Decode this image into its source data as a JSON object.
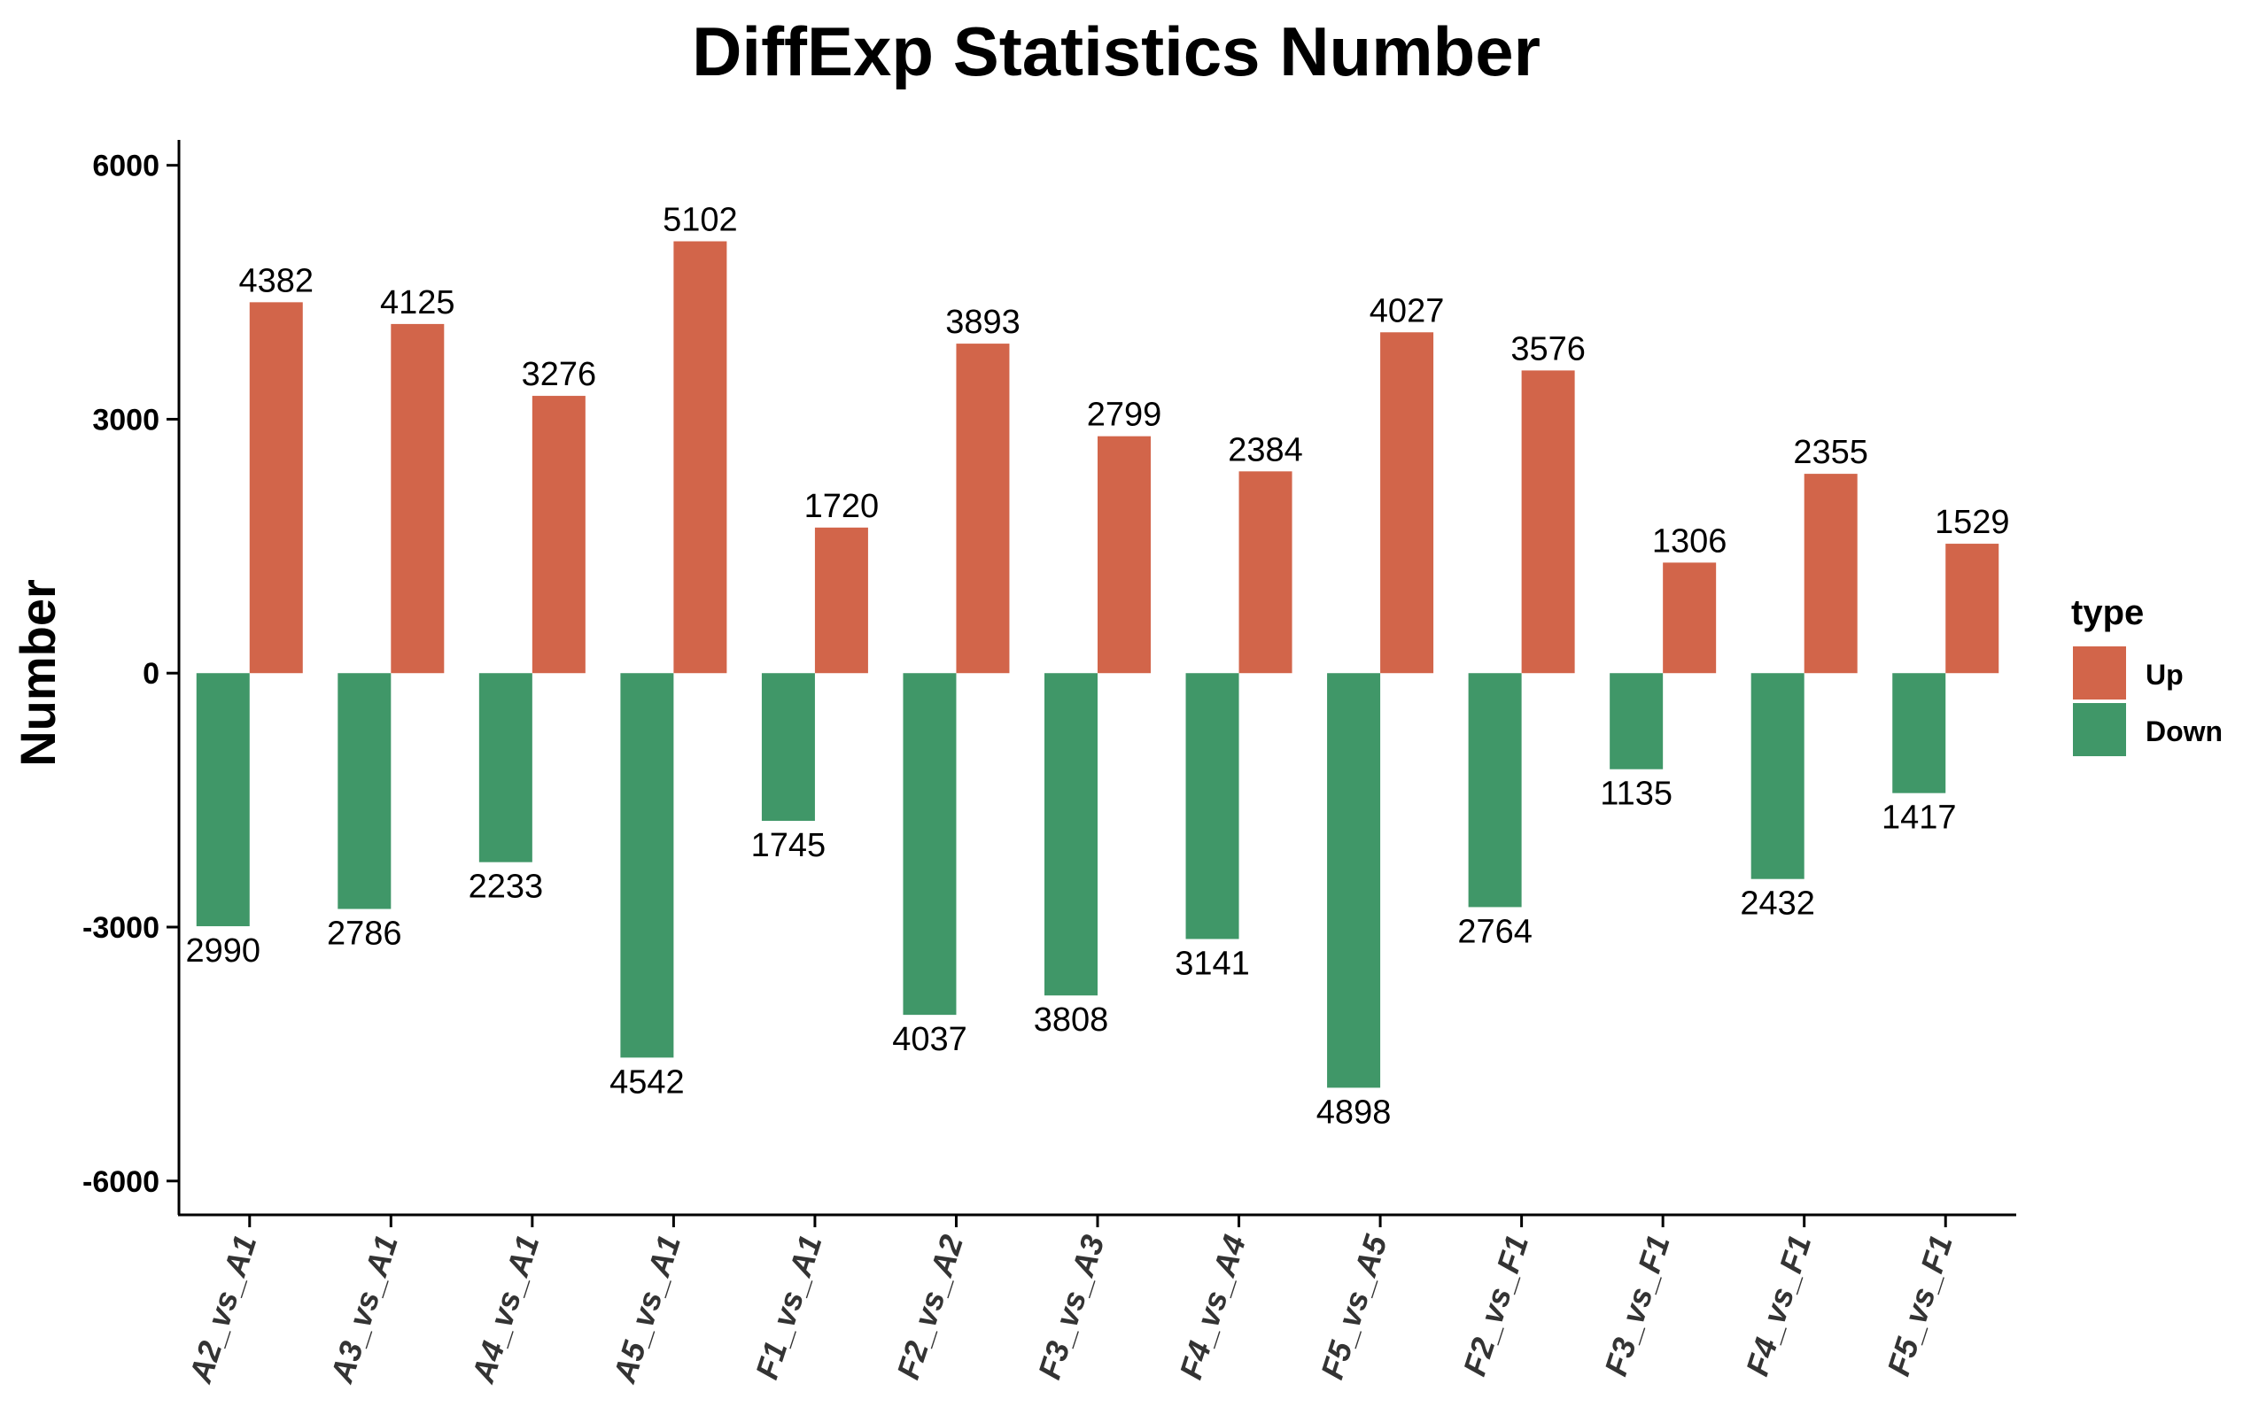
{
  "chart_data": {
    "type": "bar",
    "title": "DiffExp Statistics Number",
    "xlabel": "",
    "ylabel": "Number",
    "ylim": [
      -6400,
      6300
    ],
    "yticks": [
      6000,
      3000,
      0,
      -3000,
      -6000
    ],
    "grid": false,
    "legend": {
      "title": "type",
      "placement": "right",
      "items": [
        {
          "name": "Up",
          "color": "#D2654A"
        },
        {
          "name": "Down",
          "color": "#409768"
        }
      ]
    },
    "categories": [
      "A2_vs_A1",
      "A3_vs_A1",
      "A4_vs_A1",
      "A5_vs_A1",
      "F1_vs_A1",
      "F2_vs_A2",
      "F3_vs_A3",
      "F4_vs_A4",
      "F5_vs_A5",
      "F2_vs_F1",
      "F3_vs_F1",
      "F4_vs_F1",
      "F5_vs_F1"
    ],
    "series": [
      {
        "name": "Down",
        "color": "#409768",
        "values": [
          -2990,
          -2786,
          -2233,
          -4542,
          -1745,
          -4037,
          -3808,
          -3141,
          -4898,
          -2764,
          -1135,
          -2432,
          -1417
        ]
      },
      {
        "name": "Up",
        "color": "#D2654A",
        "values": [
          4382,
          4125,
          3276,
          5102,
          1720,
          3893,
          2799,
          2384,
          4027,
          3576,
          1306,
          2355,
          1529
        ]
      }
    ],
    "data_labels": {
      "Down": [
        "2990",
        "2786",
        "2233",
        "4542",
        "1745",
        "4037",
        "3808",
        "3141",
        "4898",
        "2764",
        "1135",
        "2432",
        "1417"
      ],
      "Up": [
        "4382",
        "4125",
        "3276",
        "5102",
        "1720",
        "3893",
        "2799",
        "2384",
        "4027",
        "3576",
        "1306",
        "2355",
        "1529"
      ]
    }
  }
}
